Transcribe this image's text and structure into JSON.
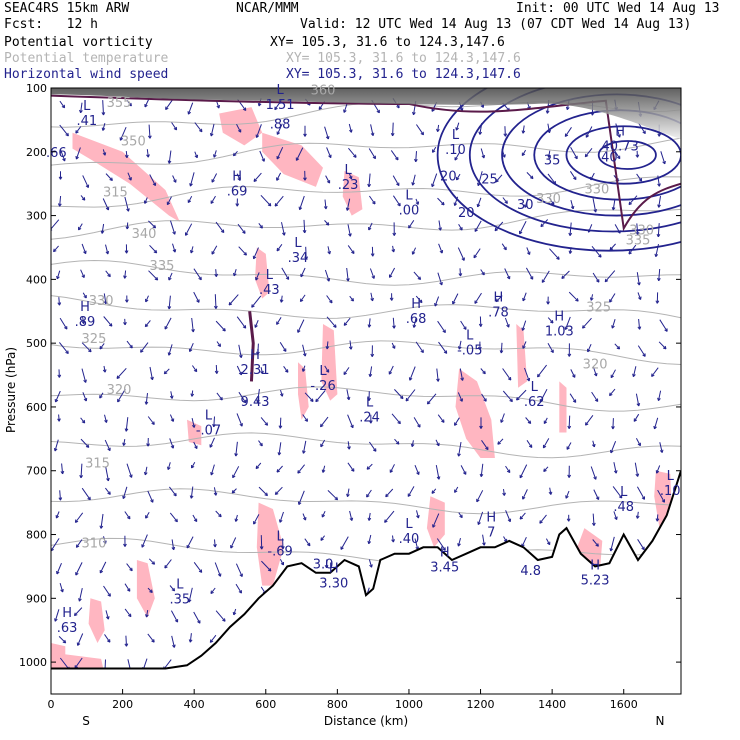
{
  "header": {
    "line1_left": "SEAC4RS 15km ARW",
    "line1_center": "NCAR/MMM",
    "line1_right": "Init: 00 UTC Wed 14 Aug 13",
    "line2_left": "Fcst:   12 h",
    "line2_right": "Valid: 12 UTC Wed 14 Aug 13 (07 CDT Wed 14 Aug 13)",
    "fields": [
      {
        "name": "Potential vorticity",
        "xy": "XY= 105.3, 31.6 to 124.3,147.6",
        "color": "#000000"
      },
      {
        "name": "Potential temperature",
        "xy": "XY= 105.3, 31.6 to 124.3,147.6",
        "color": "#b4b4b4"
      },
      {
        "name": "Horizontal wind speed",
        "xy": "XY= 105.3, 31.6 to 124.3,147.6",
        "color": "#23238e"
      }
    ]
  },
  "chart_data": {
    "type": "cross-section",
    "xlabel": "Distance (km)",
    "ylabel": "Pressure (hPa)",
    "xlim": [
      0,
      1760
    ],
    "ylim": [
      1050,
      100
    ],
    "x_ticks": [
      "0",
      "200",
      "400",
      "600",
      "800",
      "1000",
      "1200",
      "1400",
      "1600"
    ],
    "x_tick_values": [
      0,
      200,
      400,
      600,
      800,
      1000,
      1200,
      1400,
      1600
    ],
    "y_ticks": [
      "100",
      "200",
      "300",
      "400",
      "500",
      "600",
      "700",
      "800",
      "900",
      "1000"
    ],
    "y_tick_values": [
      100,
      200,
      300,
      400,
      500,
      600,
      700,
      800,
      900,
      1000
    ],
    "endpoints": {
      "left": "S",
      "right": "N"
    },
    "colors": {
      "pv_fill": "#ffb6c1",
      "wind": "#23238e",
      "theta": "#b4b4b4",
      "pv_line": "#5a1a4a",
      "terrain": "#000000"
    },
    "terrain": [
      [
        0,
        1010
      ],
      [
        60,
        1010
      ],
      [
        150,
        1010
      ],
      [
        250,
        1010
      ],
      [
        320,
        1010
      ],
      [
        380,
        1005
      ],
      [
        420,
        990
      ],
      [
        460,
        970
      ],
      [
        500,
        945
      ],
      [
        540,
        925
      ],
      [
        580,
        900
      ],
      [
        620,
        880
      ],
      [
        660,
        850
      ],
      [
        700,
        845
      ],
      [
        740,
        860
      ],
      [
        780,
        860
      ],
      [
        820,
        840
      ],
      [
        860,
        850
      ],
      [
        880,
        895
      ],
      [
        900,
        885
      ],
      [
        920,
        840
      ],
      [
        960,
        830
      ],
      [
        1000,
        830
      ],
      [
        1040,
        820
      ],
      [
        1080,
        820
      ],
      [
        1120,
        840
      ],
      [
        1160,
        830
      ],
      [
        1200,
        820
      ],
      [
        1240,
        820
      ],
      [
        1280,
        810
      ],
      [
        1320,
        820
      ],
      [
        1360,
        840
      ],
      [
        1400,
        835
      ],
      [
        1420,
        800
      ],
      [
        1440,
        790
      ],
      [
        1480,
        830
      ],
      [
        1520,
        850
      ],
      [
        1560,
        845
      ],
      [
        1600,
        800
      ],
      [
        1640,
        840
      ],
      [
        1680,
        810
      ],
      [
        1720,
        770
      ],
      [
        1760,
        700
      ]
    ],
    "wind_speed_contours": [
      {
        "label": "20",
        "x": 1110,
        "p": 245
      },
      {
        "label": "20",
        "x": 1160,
        "p": 302
      },
      {
        "label": "25",
        "x": 1225,
        "p": 250
      },
      {
        "label": "30",
        "x": 1325,
        "p": 290
      },
      {
        "label": "35",
        "x": 1400,
        "p": 220
      },
      {
        "label": "40",
        "x": 1560,
        "p": 215
      }
    ],
    "theta_labels": [
      {
        "label": "315",
        "x": 180,
        "p": 270
      },
      {
        "label": "340",
        "x": 260,
        "p": 335
      },
      {
        "label": "335",
        "x": 310,
        "p": 385
      },
      {
        "label": "330",
        "x": 140,
        "p": 440
      },
      {
        "label": "325",
        "x": 120,
        "p": 500
      },
      {
        "label": "320",
        "x": 190,
        "p": 580
      },
      {
        "label": "315",
        "x": 130,
        "p": 695
      },
      {
        "label": "310",
        "x": 120,
        "p": 820
      },
      {
        "label": "350",
        "x": 230,
        "p": 190
      },
      {
        "label": "355",
        "x": 190,
        "p": 130
      },
      {
        "label": "360",
        "x": 760,
        "p": 110
      },
      {
        "label": "330",
        "x": 1525,
        "p": 265
      },
      {
        "label": "335",
        "x": 1640,
        "p": 345
      },
      {
        "label": "325",
        "x": 1530,
        "p": 450
      },
      {
        "label": "320",
        "x": 1520,
        "p": 540
      },
      {
        "label": "330",
        "x": 1390,
        "p": 280
      },
      {
        "label": "330",
        "x": 1650,
        "p": 330
      }
    ],
    "extrema": [
      {
        "type": "L",
        "value": ".41",
        "x": 100,
        "p": 155
      },
      {
        "type": "L",
        "value": "1.51",
        "x": 640,
        "p": 130
      },
      {
        "type": "",
        "value": ".88",
        "x": 640,
        "p": 160
      },
      {
        "type": "",
        "value": ".66",
        "x": 15,
        "p": 205
      },
      {
        "type": "H",
        "value": ".69",
        "x": 520,
        "p": 265
      },
      {
        "type": "L",
        "value": ".23",
        "x": 830,
        "p": 255
      },
      {
        "type": "L",
        "value": ".00",
        "x": 1000,
        "p": 295
      },
      {
        "type": "L",
        "value": ".10",
        "x": 1130,
        "p": 200
      },
      {
        "type": "H",
        "value": "40.73",
        "x": 1590,
        "p": 195
      },
      {
        "type": "L",
        "value": ".34",
        "x": 690,
        "p": 370
      },
      {
        "type": "L",
        "value": ".43",
        "x": 610,
        "p": 420
      },
      {
        "type": "H",
        "value": ".89",
        "x": 95,
        "p": 470
      },
      {
        "type": "H",
        "value": ".68",
        "x": 1020,
        "p": 465
      },
      {
        "type": "H",
        "value": ".78",
        "x": 1250,
        "p": 455
      },
      {
        "type": "H",
        "value": "1.03",
        "x": 1420,
        "p": 485
      },
      {
        "type": "H",
        "value": "2.31",
        "x": 570,
        "p": 545
      },
      {
        "type": "L",
        "value": "-.26",
        "x": 760,
        "p": 570
      },
      {
        "type": "L",
        "value": "-.05",
        "x": 1170,
        "p": 515
      },
      {
        "type": "",
        "value": "9.43",
        "x": 570,
        "p": 595
      },
      {
        "type": "L",
        "value": ".62",
        "x": 1350,
        "p": 595
      },
      {
        "type": "L",
        "value": ".24",
        "x": 890,
        "p": 620
      },
      {
        "type": "L",
        "value": "-.07",
        "x": 440,
        "p": 640
      },
      {
        "type": "L",
        "value": ".48",
        "x": 1600,
        "p": 760
      },
      {
        "type": "L",
        "value": ".10",
        "x": 1730,
        "p": 735
      },
      {
        "type": "L",
        "value": "-.69",
        "x": 640,
        "p": 830
      },
      {
        "type": "L",
        "value": ".40",
        "x": 1000,
        "p": 810
      },
      {
        "type": "H",
        "value": "3.45",
        "x": 1100,
        "p": 855
      },
      {
        "type": "H",
        "value": "7",
        "x": 1230,
        "p": 800
      },
      {
        "type": "",
        "value": "4.8",
        "x": 1340,
        "p": 860
      },
      {
        "type": "H",
        "value": "5.23",
        "x": 1520,
        "p": 875
      },
      {
        "type": "H",
        "value": "3.30",
        "x": 790,
        "p": 880
      },
      {
        "type": "L",
        "value": ".35",
        "x": 360,
        "p": 905
      },
      {
        "type": "H",
        "value": ".63",
        "x": 45,
        "p": 950
      },
      {
        "type": "",
        "value": "3.0",
        "x": 760,
        "p": 850
      }
    ]
  }
}
